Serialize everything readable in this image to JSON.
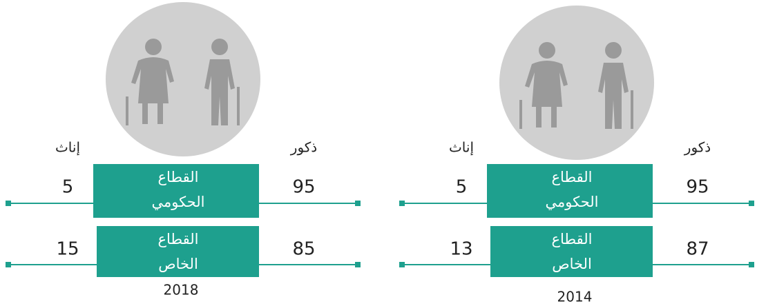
{
  "panels": [
    {
      "year": "2018",
      "male_label": "ذكور",
      "female_label": "إناث",
      "rows": [
        {
          "sector": [
            "القطاع",
            "الحكومي"
          ],
          "male": 95,
          "female": 5
        },
        {
          "sector": [
            "القطاع",
            "الخاص"
          ],
          "male": 85,
          "female": 15
        }
      ]
    },
    {
      "year": "2014",
      "male_label": "ذكور",
      "female_label": "إناث",
      "rows": [
        {
          "sector": [
            "القطاع",
            "الحكومي"
          ],
          "male": 95,
          "female": 5
        },
        {
          "sector": [
            "القطاع",
            "الخاص"
          ],
          "male": 87,
          "female": 13
        }
      ]
    }
  ]
}
